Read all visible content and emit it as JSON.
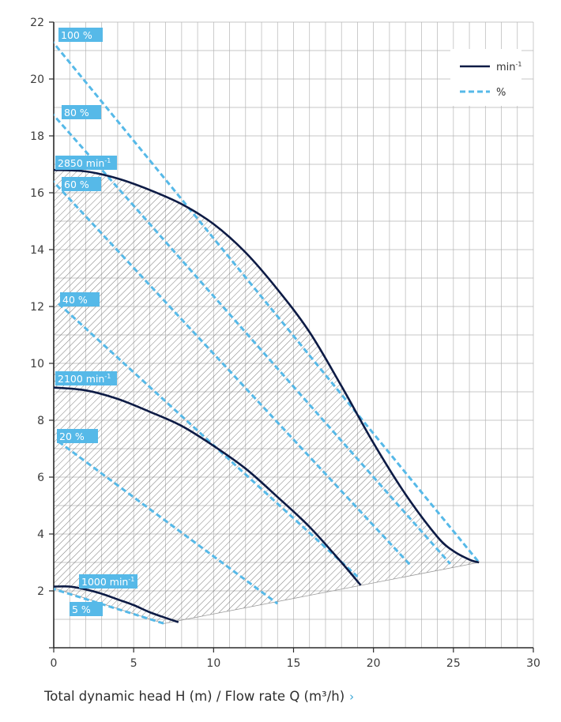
{
  "chart_data": {
    "type": "line",
    "x_axis": {
      "min": 0,
      "max": 30,
      "ticks": [
        0,
        5,
        10,
        15,
        20,
        25,
        30
      ]
    },
    "y_axis": {
      "min": 0,
      "max": 22,
      "ticks": [
        2,
        4,
        6,
        8,
        10,
        12,
        14,
        16,
        18,
        20,
        22
      ]
    },
    "grid": true,
    "legend": {
      "position": "top-right",
      "items": [
        {
          "label": "min",
          "superscript": "-1",
          "style": "solid",
          "color": "#0d1b45"
        },
        {
          "label": "%",
          "style": "dashed",
          "color": "#56b9e8"
        }
      ]
    },
    "speed_curves": [
      {
        "label": "2850 min-1",
        "label_main": "2850 min",
        "label_sup": "-1",
        "points": [
          [
            0,
            16.8
          ],
          [
            2,
            16.75
          ],
          [
            4,
            16.5
          ],
          [
            6,
            16.1
          ],
          [
            8,
            15.6
          ],
          [
            10,
            14.9
          ],
          [
            12,
            13.9
          ],
          [
            14,
            12.6
          ],
          [
            16,
            11.1
          ],
          [
            18,
            9.2
          ],
          [
            20,
            7.2
          ],
          [
            22,
            5.4
          ],
          [
            24,
            3.9
          ],
          [
            25,
            3.4
          ],
          [
            26,
            3.1
          ],
          [
            26.6,
            3.0
          ]
        ]
      },
      {
        "label": "2100 min-1",
        "label_main": "2100 min",
        "label_sup": "-1",
        "points": [
          [
            0,
            9.15
          ],
          [
            2,
            9.05
          ],
          [
            4,
            8.75
          ],
          [
            6,
            8.3
          ],
          [
            8,
            7.8
          ],
          [
            10,
            7.1
          ],
          [
            12,
            6.3
          ],
          [
            14,
            5.3
          ],
          [
            16,
            4.25
          ],
          [
            18,
            3.0
          ],
          [
            19.2,
            2.2
          ]
        ]
      },
      {
        "label": "1000 min-1",
        "label_main": "1000 min",
        "label_sup": "-1",
        "points": [
          [
            0,
            2.15
          ],
          [
            1,
            2.15
          ],
          [
            2,
            2.05
          ],
          [
            3,
            1.9
          ],
          [
            4,
            1.7
          ],
          [
            5,
            1.5
          ],
          [
            6,
            1.25
          ],
          [
            7,
            1.05
          ],
          [
            7.8,
            0.9
          ]
        ]
      }
    ],
    "percent_curves": [
      {
        "label": "100 %",
        "points": [
          [
            -0.2,
            21.4
          ],
          [
            26.6,
            3.0
          ]
        ]
      },
      {
        "label": "80 %",
        "points": [
          [
            -0.2,
            18.85
          ],
          [
            24.8,
            2.95
          ]
        ]
      },
      {
        "label": "60 %",
        "points": [
          [
            -0.2,
            16.5
          ],
          [
            22.4,
            2.85
          ]
        ]
      },
      {
        "label": "40 %",
        "points": [
          [
            0.3,
            12.1
          ],
          [
            19.0,
            2.5
          ]
        ]
      },
      {
        "label": "20 %",
        "points": [
          [
            0.3,
            7.25
          ],
          [
            14.0,
            1.55
          ]
        ]
      },
      {
        "label": "5 %",
        "points": [
          [
            -0.2,
            2.1
          ],
          [
            6.9,
            0.85
          ]
        ]
      }
    ],
    "speed_labels": [
      "2850 min-1",
      "2100 min-1",
      "1000 min-1"
    ],
    "percent_labels": [
      "100 %",
      "80 %",
      "60 %",
      "40 %",
      "20 %",
      "5 %"
    ]
  },
  "xlabel": "Total dynamic head H (m) / Flow rate Q (m³/h)",
  "xlabel_chevron": "›",
  "colors": {
    "speed": "#0d1b45",
    "percent": "#56b9e8",
    "grid": "#b5b5b5",
    "hatch": "#555555"
  }
}
